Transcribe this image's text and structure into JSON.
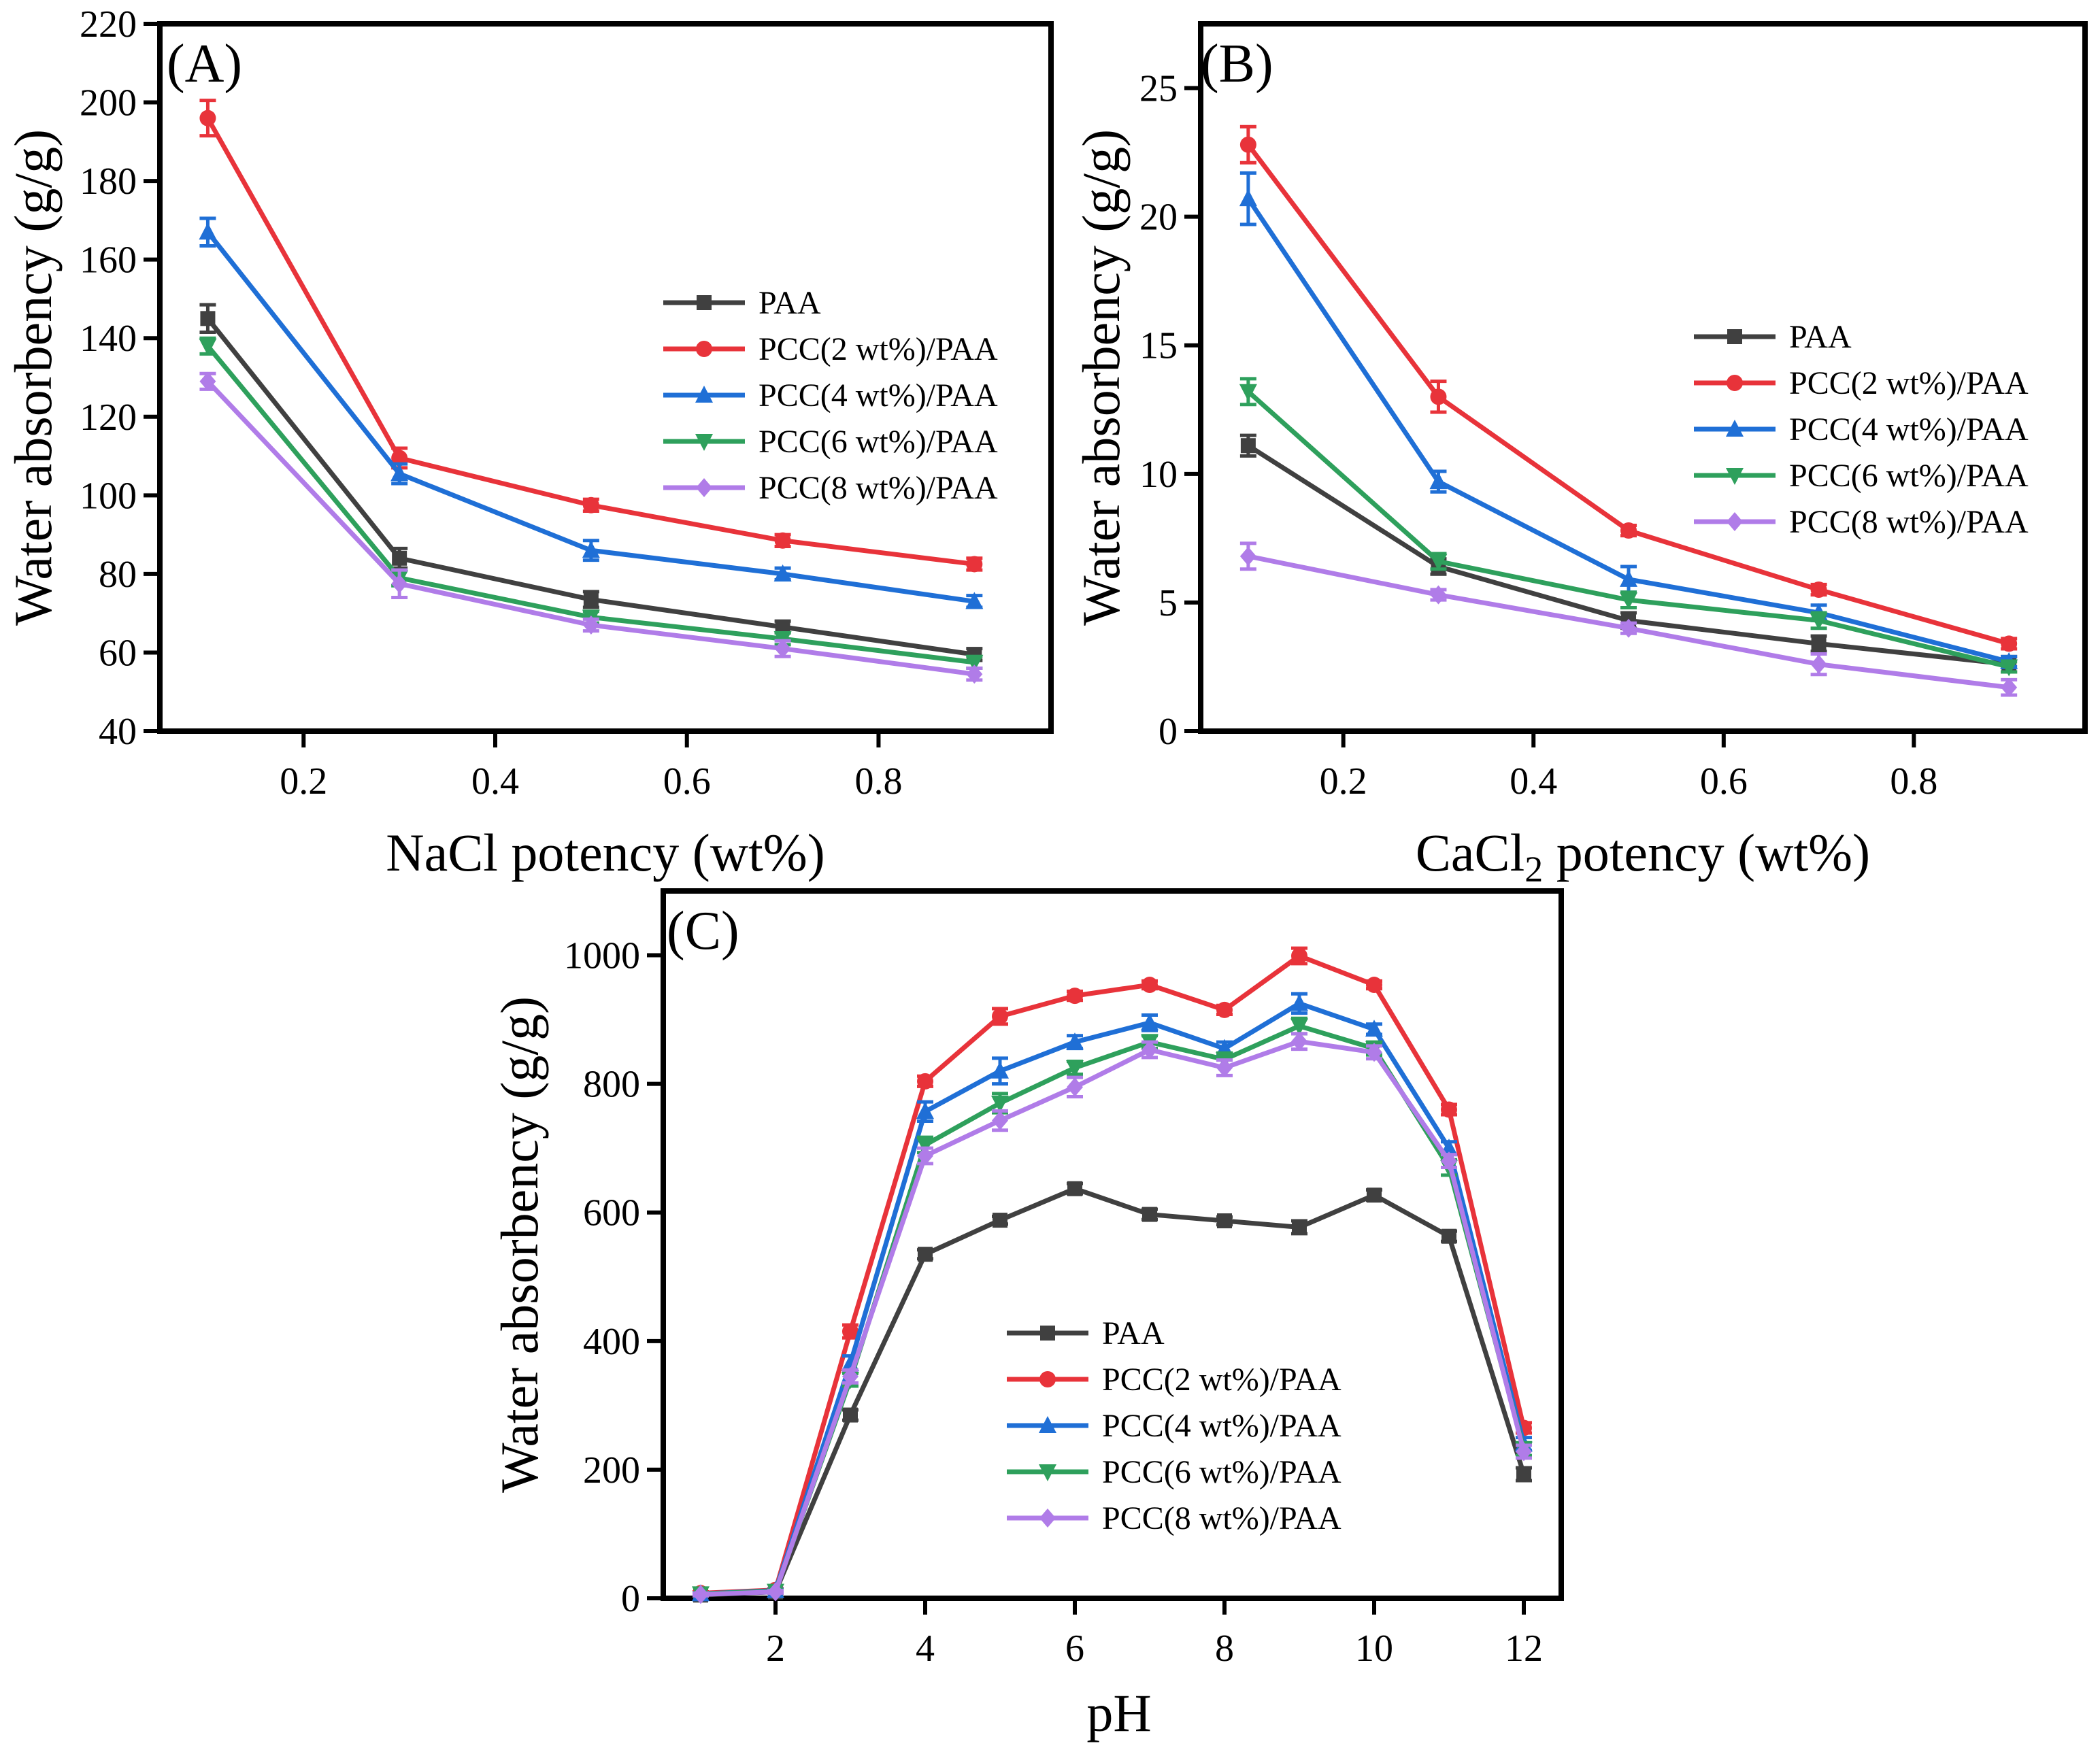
{
  "chart_data": [
    {
      "panel": "(A)",
      "type": "line",
      "xlabel": "NaCl potency (wt%)",
      "ylabel": "Water absorbency (g/g)",
      "xlim": [
        0.05,
        0.98
      ],
      "ylim": [
        40,
        220
      ],
      "xticks": [
        0.2,
        0.4,
        0.6,
        0.8
      ],
      "yticks": [
        40,
        60,
        80,
        100,
        120,
        140,
        160,
        180,
        200,
        220
      ],
      "x": [
        0.1,
        0.3,
        0.5,
        0.7,
        0.9
      ],
      "legend_position": "center-right",
      "series": [
        {
          "name": "PAA",
          "marker": "square",
          "color": "#404040",
          "values": [
            145,
            84,
            73.5,
            66.5,
            59.5
          ],
          "errors": [
            3.5,
            2.5,
            2,
            1.5,
            1.5
          ]
        },
        {
          "name": "PCC(2 wt%)/PAA",
          "marker": "circle",
          "color": "#e8333a",
          "values": [
            196,
            109.5,
            97.5,
            88.5,
            82.5
          ],
          "errors": [
            4.5,
            2.5,
            1.5,
            1.5,
            1.5
          ]
        },
        {
          "name": "PCC(4 wt%)/PAA",
          "marker": "triangle-up",
          "color": "#1f6fd6",
          "values": [
            167,
            105.5,
            86,
            80,
            73
          ],
          "errors": [
            3.5,
            2.5,
            2.5,
            1.5,
            1.5
          ]
        },
        {
          "name": "PCC(6 wt%)/PAA",
          "marker": "triangle-down",
          "color": "#2ea05c",
          "values": [
            138,
            79,
            69,
            63.5,
            57.5
          ],
          "errors": [
            2,
            2,
            1.5,
            1.5,
            1.5
          ]
        },
        {
          "name": "PCC(8 wt%)/PAA",
          "marker": "diamond",
          "color": "#b07ce8",
          "values": [
            129,
            77.5,
            67,
            61,
            54.5
          ],
          "errors": [
            2,
            3.5,
            1.5,
            2,
            1.5
          ]
        }
      ]
    },
    {
      "panel": "(B)",
      "type": "line",
      "xlabel_main": "CaCl",
      "xlabel_sub": "2",
      "xlabel_rest": " potency (wt%)",
      "ylabel": "Water absorbency (g/g)",
      "xlim": [
        0.05,
        0.98
      ],
      "ylim": [
        0,
        27.5
      ],
      "xticks": [
        0.2,
        0.4,
        0.6,
        0.8
      ],
      "yticks": [
        0,
        5,
        10,
        15,
        20,
        25
      ],
      "x": [
        0.1,
        0.3,
        0.5,
        0.7,
        0.9
      ],
      "legend_position": "center-right",
      "series": [
        {
          "name": "PAA",
          "marker": "square",
          "color": "#404040",
          "values": [
            11.1,
            6.4,
            4.3,
            3.4,
            2.6
          ],
          "errors": [
            0.4,
            0.3,
            0.3,
            0.3,
            0.3
          ]
        },
        {
          "name": "PCC(2 wt%)/PAA",
          "marker": "circle",
          "color": "#e8333a",
          "values": [
            22.8,
            13,
            7.8,
            5.5,
            3.4
          ],
          "errors": [
            0.7,
            0.6,
            0.2,
            0.2,
            0.2
          ]
        },
        {
          "name": "PCC(4 wt%)/PAA",
          "marker": "triangle-up",
          "color": "#1f6fd6",
          "values": [
            20.7,
            9.7,
            5.9,
            4.6,
            2.7
          ],
          "errors": [
            1.0,
            0.4,
            0.5,
            0.3,
            0.2
          ]
        },
        {
          "name": "PCC(6 wt%)/PAA",
          "marker": "triangle-down",
          "color": "#2ea05c",
          "values": [
            13.2,
            6.6,
            5.1,
            4.3,
            2.5
          ],
          "errors": [
            0.5,
            0.3,
            0.3,
            0.3,
            0.2
          ]
        },
        {
          "name": "PCC(8 wt%)/PAA",
          "marker": "diamond",
          "color": "#b07ce8",
          "values": [
            6.8,
            5.3,
            4.0,
            2.6,
            1.7
          ],
          "errors": [
            0.5,
            0.2,
            0.2,
            0.4,
            0.3
          ]
        }
      ]
    },
    {
      "panel": "(C)",
      "type": "line",
      "xlabel": "pH",
      "ylabel": "Water absorbency (g/g)",
      "xlim": [
        0.5,
        12.5
      ],
      "ylim": [
        0,
        1100
      ],
      "xticks": [
        2,
        4,
        6,
        8,
        10,
        12
      ],
      "yticks": [
        0,
        200,
        400,
        600,
        800,
        1000
      ],
      "x": [
        1,
        2,
        3,
        4,
        5,
        6,
        7,
        8,
        9,
        10,
        11,
        12
      ],
      "legend_position": "lower-center",
      "series": [
        {
          "name": "PAA",
          "marker": "square",
          "color": "#404040",
          "values": [
            5,
            10,
            285,
            535,
            588,
            637,
            597,
            587,
            577,
            627,
            563,
            193
          ],
          "errors": [
            2,
            2,
            8,
            7,
            6,
            8,
            8,
            6,
            10,
            8,
            8,
            10
          ]
        },
        {
          "name": "PCC(2 wt%)/PAA",
          "marker": "circle",
          "color": "#e8333a",
          "values": [
            8,
            13,
            415,
            804,
            905,
            937,
            954,
            915,
            999,
            954,
            760,
            265
          ],
          "errors": [
            2,
            2,
            10,
            8,
            12,
            7,
            6,
            7,
            12,
            6,
            8,
            8
          ]
        },
        {
          "name": "PCC(4 wt%)/PAA",
          "marker": "triangle-up",
          "color": "#1f6fd6",
          "values": [
            7,
            12,
            365,
            757,
            820,
            865,
            895,
            855,
            925,
            885,
            700,
            240
          ],
          "errors": [
            2,
            2,
            12,
            15,
            20,
            10,
            12,
            10,
            15,
            8,
            10,
            10
          ]
        },
        {
          "name": "PCC(6 wt%)/PAA",
          "marker": "triangle-down",
          "color": "#2ea05c",
          "values": [
            7,
            11,
            340,
            705,
            770,
            825,
            865,
            838,
            890,
            855,
            670,
            232
          ],
          "errors": [
            2,
            2,
            10,
            12,
            15,
            10,
            10,
            10,
            12,
            10,
            12,
            10
          ]
        },
        {
          "name": "PCC(8 wt%)/PAA",
          "marker": "diamond",
          "color": "#b07ce8",
          "values": [
            6,
            10,
            345,
            688,
            743,
            795,
            853,
            825,
            866,
            849,
            680,
            228
          ],
          "errors": [
            2,
            2,
            10,
            12,
            15,
            15,
            12,
            12,
            12,
            10,
            10,
            10
          ]
        }
      ]
    }
  ]
}
